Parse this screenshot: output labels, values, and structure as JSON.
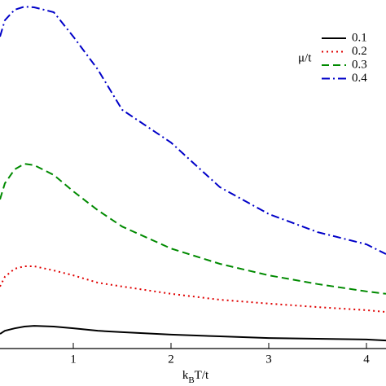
{
  "chart_data": {
    "type": "line",
    "xlabel": [
      "k",
      "B",
      "T/t"
    ],
    "legend_title": "μ/t",
    "legend_position": "upper right",
    "grid": false,
    "x": [
      0.25,
      0.3,
      0.4,
      0.5,
      0.6,
      0.8,
      1,
      1.25,
      1.5,
      2,
      2.5,
      3,
      3.5,
      4,
      4.2
    ],
    "xlim": [
      0.25,
      4.2
    ],
    "xticks": [
      1,
      2,
      3,
      4
    ],
    "ylim": [
      0,
      1
    ],
    "series": [
      {
        "name": "0.1",
        "color": "#000000",
        "dash": "none",
        "values": [
          0.042,
          0.051,
          0.058,
          0.063,
          0.065,
          0.063,
          0.058,
          0.051,
          0.047,
          0.04,
          0.035,
          0.03,
          0.028,
          0.026,
          0.023
        ]
      },
      {
        "name": "0.2",
        "color": "#e00000",
        "dash": "2 4",
        "values": [
          0.178,
          0.206,
          0.229,
          0.236,
          0.236,
          0.224,
          0.21,
          0.189,
          0.178,
          0.157,
          0.14,
          0.129,
          0.119,
          0.11,
          0.105
        ]
      },
      {
        "name": "0.3",
        "color": "#008a00",
        "dash": "9 5",
        "values": [
          0.428,
          0.474,
          0.514,
          0.53,
          0.526,
          0.498,
          0.451,
          0.397,
          0.35,
          0.287,
          0.243,
          0.21,
          0.185,
          0.164,
          0.157
        ]
      },
      {
        "name": "0.4",
        "color": "#0000c8",
        "dash": "10 4 2 4",
        "values": [
          0.895,
          0.942,
          0.972,
          0.981,
          0.979,
          0.965,
          0.895,
          0.801,
          0.685,
          0.591,
          0.463,
          0.386,
          0.334,
          0.299,
          0.271
        ]
      }
    ]
  }
}
